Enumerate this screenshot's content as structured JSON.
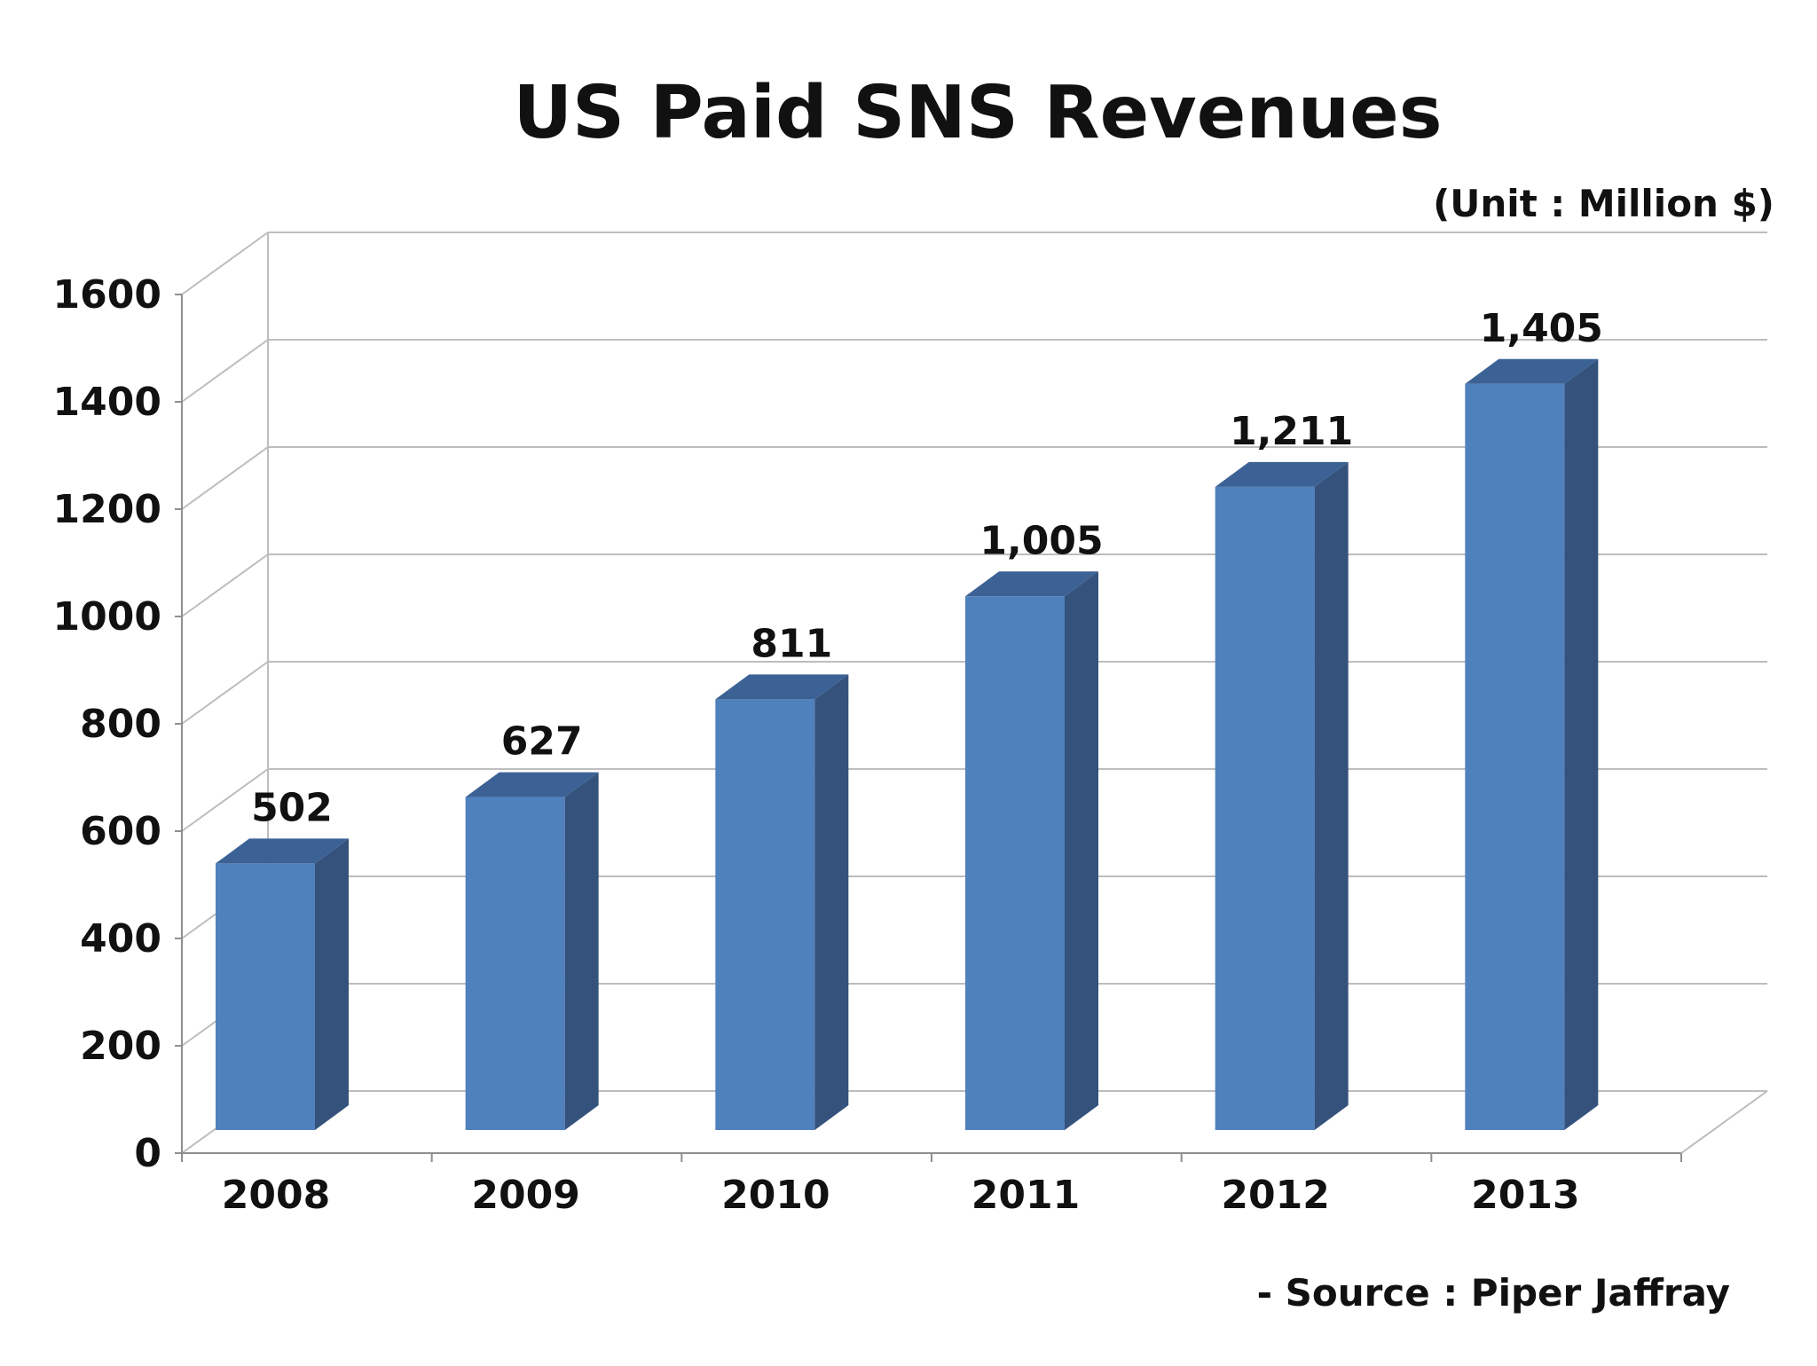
{
  "chart_data": {
    "type": "bar",
    "title": "US Paid SNS Revenues",
    "unit_label": "(Unit : Million $)",
    "source_label": "- Source : Piper Jaffray",
    "categories": [
      "2008",
      "2009",
      "2010",
      "2011",
      "2012",
      "2013"
    ],
    "values": [
      502,
      627,
      811,
      1005,
      1211,
      1405
    ],
    "value_labels": [
      "502",
      "627",
      "811",
      "1,005",
      "1,211",
      "1,405"
    ],
    "y_ticks": [
      0,
      200,
      400,
      600,
      800,
      1000,
      1200,
      1400,
      1600
    ],
    "ylim": [
      0,
      1600
    ],
    "grid": true,
    "style": "3d-column",
    "colors": {
      "bar_front": "#4f81bd",
      "bar_side": "#34527c",
      "bar_top": "#3c6295",
      "grid": "#bdbdbd",
      "axis": "#8f8f8f",
      "text": "#111111"
    }
  }
}
